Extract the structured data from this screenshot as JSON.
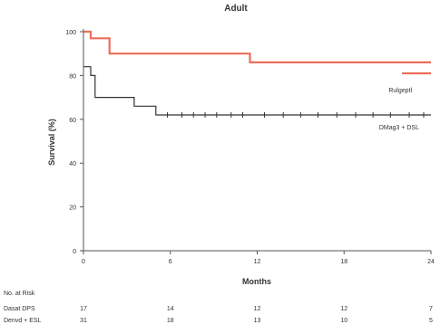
{
  "chart_data": {
    "type": "line",
    "title": "Adult",
    "xlabel": "Months",
    "ylabel": "Survival (%)",
    "xlim": [
      0,
      24
    ],
    "ylim": [
      0,
      100
    ],
    "x_ticks": [
      0,
      6,
      12,
      18,
      24
    ],
    "y_ticks": [
      0,
      20,
      40,
      60,
      80,
      100
    ],
    "grid": false,
    "series": [
      {
        "name": "Rulgeptl",
        "color": "#e8553e",
        "steps": [
          [
            0,
            100
          ],
          [
            0.5,
            100
          ],
          [
            0.5,
            97
          ],
          [
            1.8,
            97
          ],
          [
            1.8,
            90
          ],
          [
            11.5,
            90
          ],
          [
            11.5,
            86
          ],
          [
            24,
            86
          ]
        ],
        "tail_segment": [
          [
            22,
            81
          ],
          [
            24,
            81
          ]
        ]
      },
      {
        "name": "DMag3 + DSL",
        "color": "#333333",
        "steps": [
          [
            0,
            84
          ],
          [
            0.5,
            84
          ],
          [
            0.5,
            80
          ],
          [
            0.8,
            80
          ],
          [
            0.8,
            70
          ],
          [
            3.5,
            70
          ],
          [
            3.5,
            66
          ],
          [
            5.0,
            66
          ],
          [
            5.0,
            62
          ],
          [
            24,
            62
          ]
        ],
        "censor_marks": [
          5.8,
          6.8,
          7.6,
          8.4,
          9.2,
          10.2,
          11.0,
          12.5,
          13.8,
          15.0,
          16.2,
          17.5,
          18.8,
          20.0,
          21.2,
          22.5,
          23.5
        ]
      }
    ],
    "risk_table": {
      "header": "No. at Risk",
      "rows": [
        {
          "label": "Dasat DPS",
          "values": [
            "17",
            "14",
            "12",
            "12",
            "7"
          ]
        },
        {
          "label": "Denvd + ESL",
          "values": [
            "31",
            "18",
            "13",
            "10",
            "5"
          ]
        }
      ]
    }
  }
}
